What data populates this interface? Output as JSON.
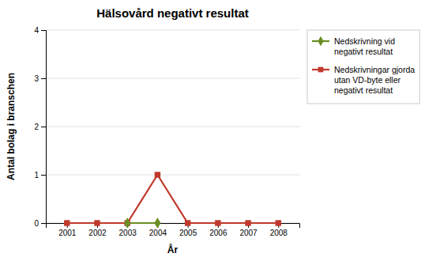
{
  "chart_data": {
    "type": "line",
    "title": "Hälsovård negativt resultat",
    "xlabel": "År",
    "ylabel": "Antal bolag i branschen",
    "x": [
      2001,
      2002,
      2003,
      2004,
      2005,
      2006,
      2007,
      2008
    ],
    "series": [
      {
        "name": "Nedskrivning vid\nnegativt resultat",
        "color": "#6B8E23",
        "marker": "diamond",
        "values": [
          null,
          null,
          0,
          0,
          null,
          null,
          null,
          null
        ]
      },
      {
        "name": "Nedskrivningar gjorda\nutan VD-byte eller\nnegativt resultat",
        "color": "#C0392B",
        "marker": "square",
        "values": [
          0,
          0,
          0,
          1,
          0,
          0,
          0,
          0
        ]
      }
    ],
    "xlim": [
      2000.3,
      2008.7
    ],
    "xticks": [
      2001,
      2002,
      2003,
      2004,
      2005,
      2006,
      2007,
      2008
    ],
    "ylim": [
      0,
      4
    ],
    "yticks": [
      0,
      1,
      2,
      3,
      4
    ],
    "grid": true,
    "legend": "right"
  }
}
